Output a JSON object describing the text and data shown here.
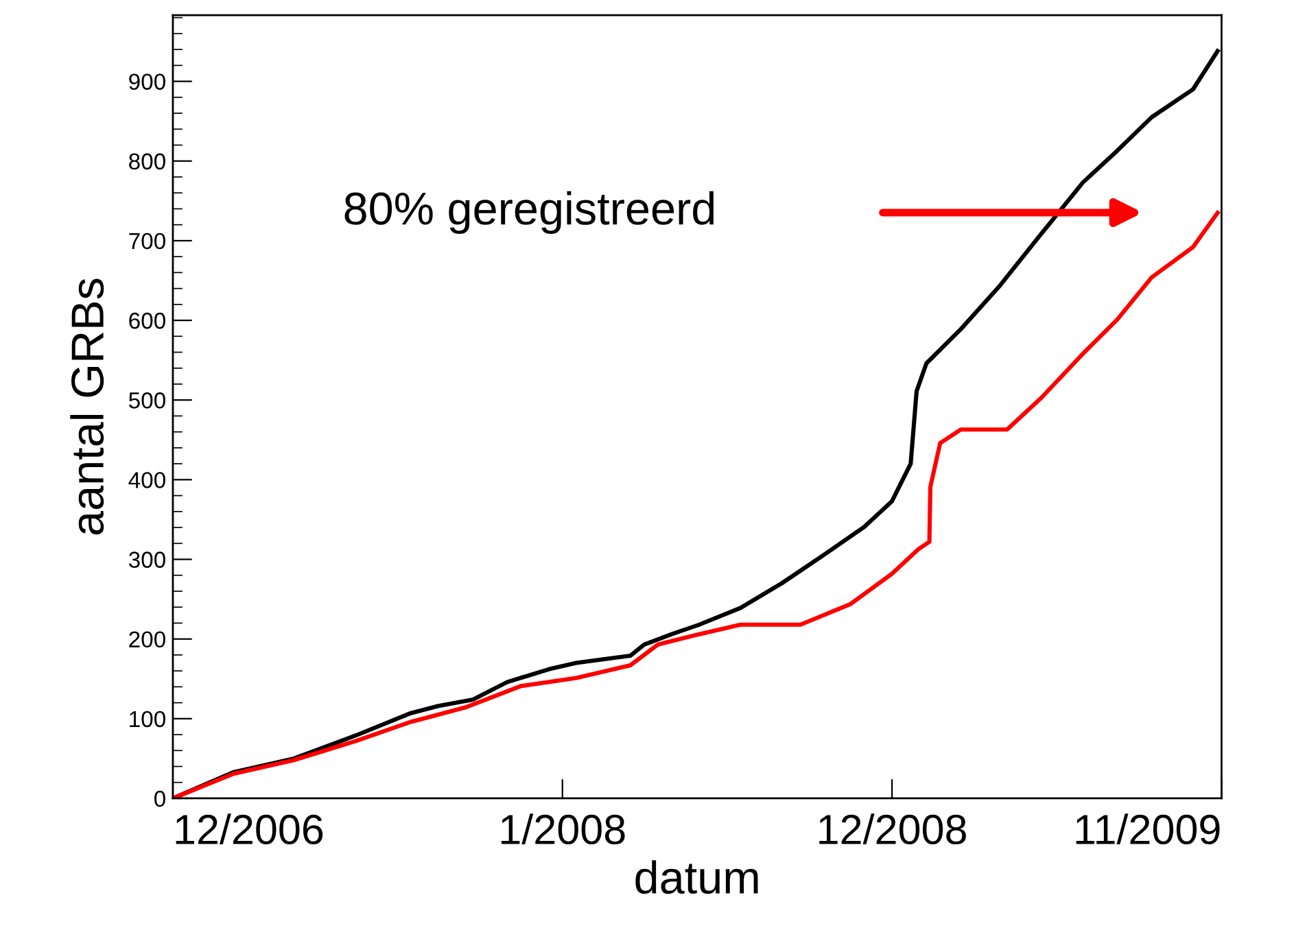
{
  "chart_data": {
    "type": "line",
    "xlabel": "datum",
    "ylabel": "aantal GRBs",
    "xlim": [
      "2006-12-01",
      "2009-11-01"
    ],
    "xticks": [
      {
        "value": "2006-12-01",
        "label": "12/2006"
      },
      {
        "value": "2008-01-01",
        "label": "1/2008"
      },
      {
        "value": "2008-12-01",
        "label": "12/2008"
      },
      {
        "value": "2009-11-01",
        "label": "11/2009"
      }
    ],
    "ylim": [
      0,
      983
    ],
    "yticks": [
      0,
      100,
      200,
      300,
      400,
      500,
      600,
      700,
      800,
      900
    ],
    "grid": false,
    "legend": false,
    "series": [
      {
        "color": "#000000",
        "x": [
          "2006-12-01",
          "2007-02-01",
          "2007-04-03",
          "2007-06-05",
          "2007-07-31",
          "2007-08-28",
          "2007-10-02",
          "2007-11-06",
          "2007-12-18",
          "2008-01-15",
          "2008-03-10",
          "2008-03-24",
          "2008-04-21",
          "2008-05-19",
          "2008-06-30",
          "2008-08-11",
          "2008-09-22",
          "2008-11-03",
          "2008-12-01",
          "2008-12-20",
          "2008-12-26",
          "2009-01-05",
          "2009-02-09",
          "2009-03-21",
          "2009-05-02",
          "2009-06-13",
          "2009-07-18",
          "2009-08-22",
          "2009-10-03",
          "2009-10-28"
        ],
        "values": [
          0,
          33,
          50,
          79,
          107,
          116,
          124,
          146,
          162,
          170,
          179,
          193,
          206,
          218,
          239,
          270,
          305,
          341,
          373,
          420,
          511,
          546,
          589,
          644,
          709,
          773,
          813,
          855,
          890,
          938
        ]
      },
      {
        "color": "#ff0000",
        "x": [
          "2006-12-01",
          "2007-02-01",
          "2007-04-03",
          "2007-06-05",
          "2007-07-31",
          "2007-09-24",
          "2007-11-20",
          "2008-01-15",
          "2008-03-10",
          "2008-04-07",
          "2008-05-19",
          "2008-06-30",
          "2008-08-30",
          "2008-10-20",
          "2008-12-01",
          "2008-12-28",
          "2009-01-08",
          "2009-01-09",
          "2009-01-19",
          "2009-02-09",
          "2009-03-28",
          "2009-05-02",
          "2009-06-13",
          "2009-07-18",
          "2009-08-22",
          "2009-10-03",
          "2009-10-28"
        ],
        "values": [
          0,
          31,
          48,
          72,
          96,
          114,
          141,
          151,
          167,
          193,
          206,
          218,
          218,
          244,
          282,
          313,
          322,
          391,
          446,
          463,
          463,
          503,
          558,
          601,
          654,
          692,
          735
        ]
      }
    ],
    "annotations": [
      "80% geregistreerd"
    ]
  }
}
